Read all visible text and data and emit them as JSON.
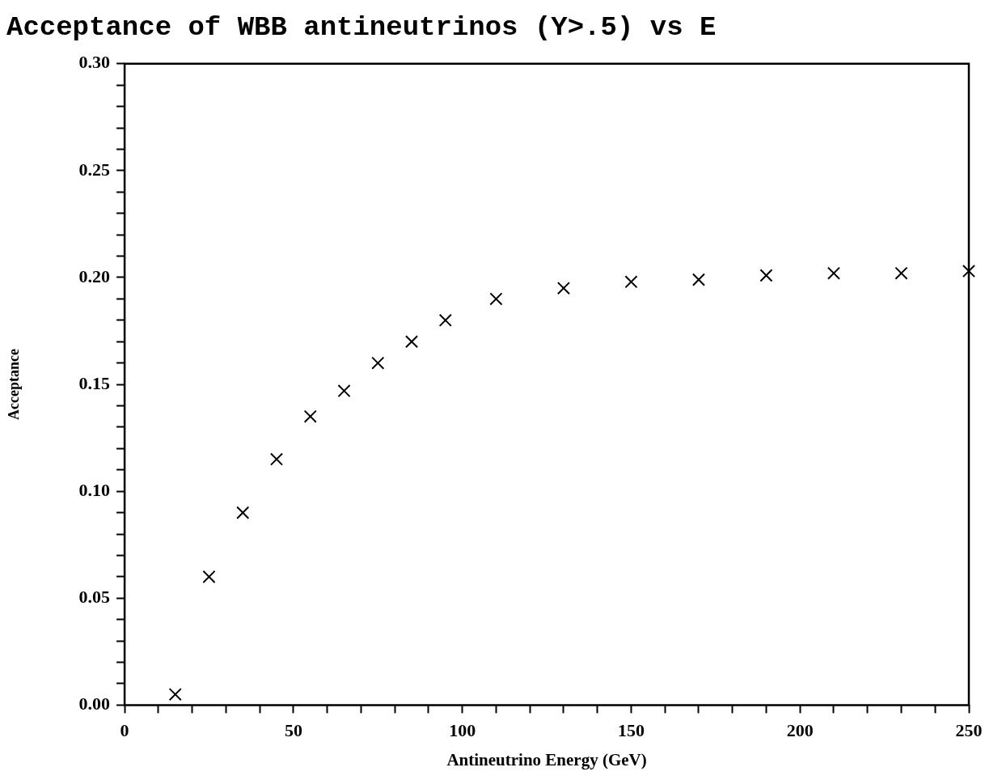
{
  "chart_data": {
    "type": "scatter",
    "title": "Acceptance of WBB antineutrinos (Y>.5) vs E",
    "xlabel": "Antineutrino Energy (GeV)",
    "ylabel": "Acceptance",
    "x": [
      15,
      25,
      35,
      45,
      55,
      65,
      75,
      85,
      95,
      110,
      130,
      150,
      170,
      190,
      210,
      230,
      250
    ],
    "series": [
      {
        "color": "#000000",
        "values": [
          0.005,
          0.06,
          0.09,
          0.115,
          0.135,
          0.147,
          0.16,
          0.17,
          0.18,
          0.19,
          0.195,
          0.198,
          0.199,
          0.201,
          0.202,
          0.202,
          0.203
        ]
      }
    ],
    "xlim": [
      0,
      250
    ],
    "ylim": [
      0,
      0.3
    ],
    "xticks": [
      0,
      {
        "value": 10,
        "label": null
      },
      {
        "value": 20,
        "label": null
      },
      {
        "value": 30,
        "label": null
      },
      {
        "value": 40,
        "label": null
      },
      50,
      {
        "value": 60,
        "label": null
      },
      {
        "value": 70,
        "label": null
      },
      {
        "value": 80,
        "label": null
      },
      {
        "value": 90,
        "label": null
      },
      100,
      {
        "value": 110,
        "label": null
      },
      {
        "value": 120,
        "label": null
      },
      {
        "value": 130,
        "label": null
      },
      {
        "value": 140,
        "label": null
      },
      150,
      {
        "value": 160,
        "label": null
      },
      {
        "value": 170,
        "label": null
      },
      {
        "value": 180,
        "label": null
      },
      {
        "value": 190,
        "label": null
      },
      200,
      {
        "value": 210,
        "label": null
      },
      {
        "value": 220,
        "label": null
      },
      {
        "value": 230,
        "label": null
      },
      {
        "value": 240,
        "label": null
      },
      250
    ],
    "yticks": [
      {
        "value": 0,
        "label": "0.00"
      },
      {
        "value": 0.01,
        "label": null
      },
      {
        "value": 0.02,
        "label": null
      },
      {
        "value": 0.03,
        "label": null
      },
      {
        "value": 0.04,
        "label": null
      },
      {
        "value": 0.05,
        "label": "0.05"
      },
      {
        "value": 0.06,
        "label": null
      },
      {
        "value": 0.07,
        "label": null
      },
      {
        "value": 0.08,
        "label": null
      },
      {
        "value": 0.09,
        "label": null
      },
      {
        "value": 0.1,
        "label": "0.10"
      },
      {
        "value": 0.11,
        "label": null
      },
      {
        "value": 0.12,
        "label": null
      },
      {
        "value": 0.13,
        "label": null
      },
      {
        "value": 0.14,
        "label": null
      },
      {
        "value": 0.15,
        "label": "0.15"
      },
      {
        "value": 0.16,
        "label": null
      },
      {
        "value": 0.17,
        "label": null
      },
      {
        "value": 0.18,
        "label": null
      },
      {
        "value": 0.19,
        "label": null
      },
      {
        "value": 0.2,
        "label": "0.20"
      },
      {
        "value": 0.21,
        "label": null
      },
      {
        "value": 0.22,
        "label": null
      },
      {
        "value": 0.23,
        "label": null
      },
      {
        "value": 0.24,
        "label": null
      },
      {
        "value": 0.25,
        "label": "0.25"
      },
      {
        "value": 0.26,
        "label": null
      },
      {
        "value": 0.27,
        "label": null
      },
      {
        "value": 0.28,
        "label": null
      },
      {
        "value": 0.29,
        "label": null
      },
      {
        "value": 0.3,
        "label": "0.30"
      }
    ],
    "marker": "cross",
    "grid": false,
    "legend": false
  }
}
